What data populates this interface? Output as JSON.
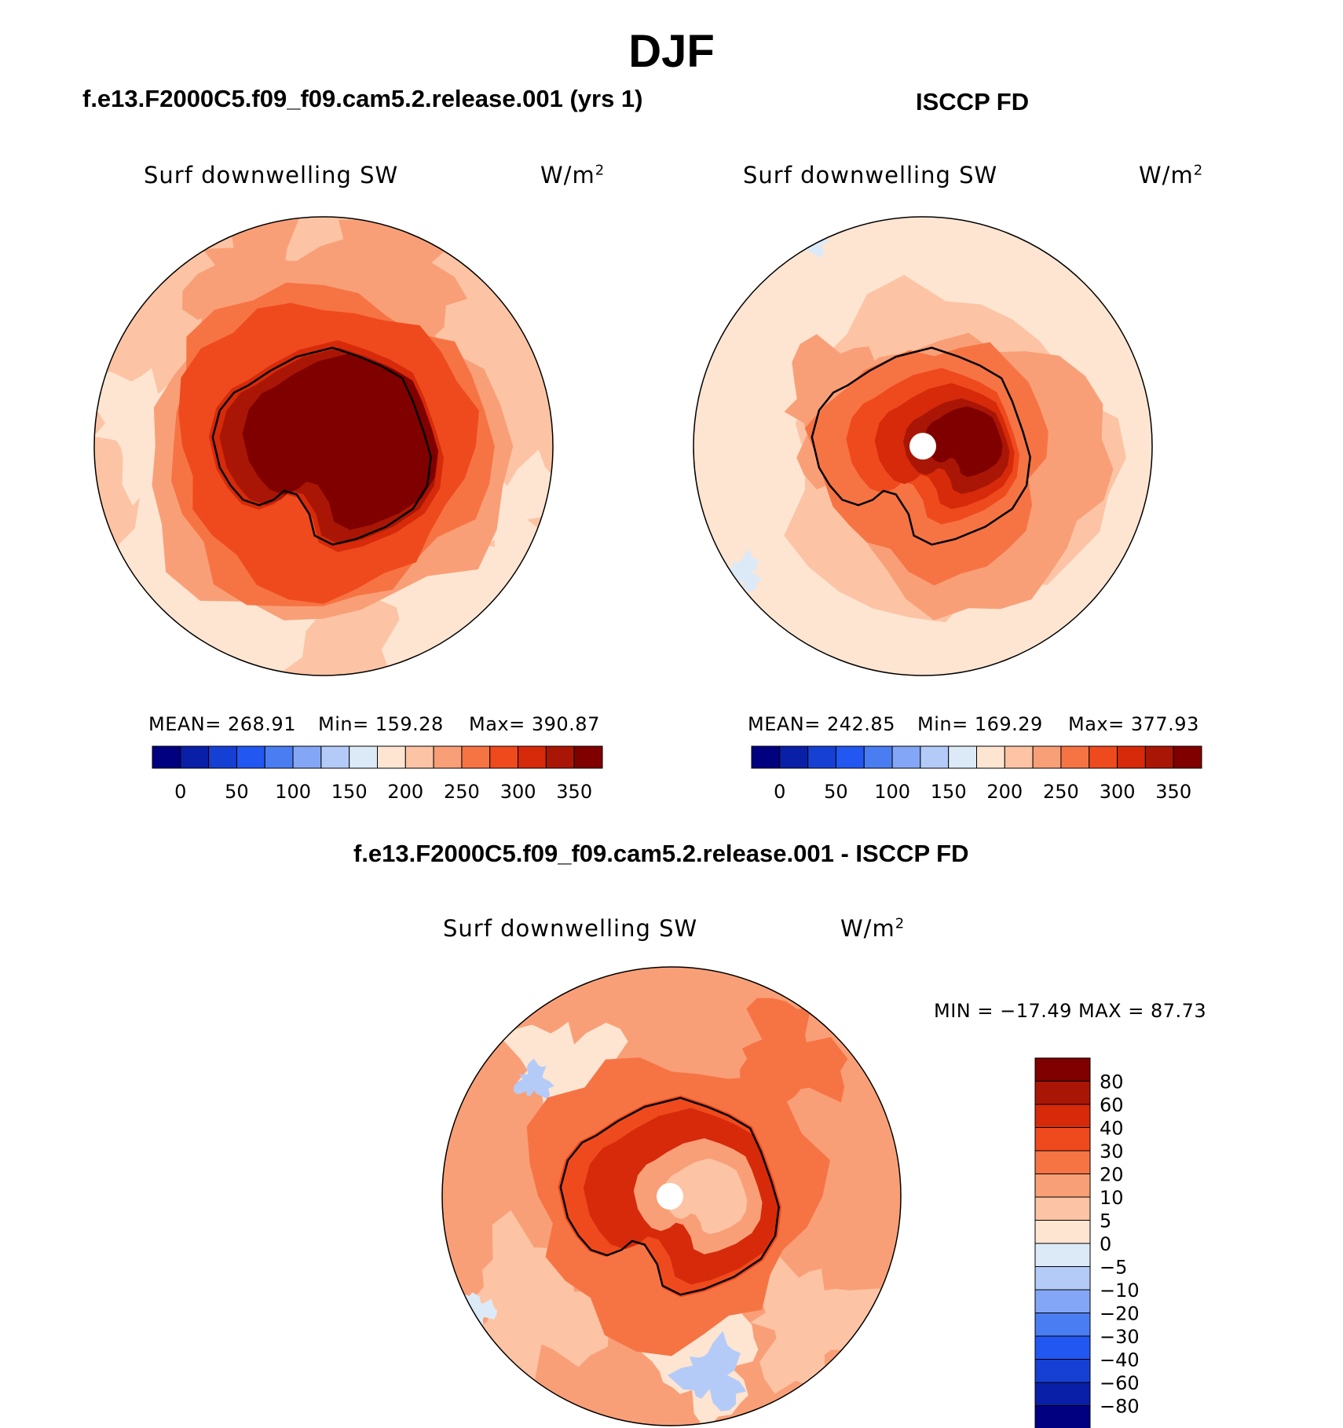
{
  "figure": {
    "season": "DJF",
    "model_title": "f.e13.F2000C5.f09_f09.cam5.2.release.001 (yrs 1)",
    "obs_title": "ISCCP FD",
    "diff_title": "f.e13.F2000C5.f09_f09.cam5.2.release.001 - ISCCP FD"
  },
  "palette": {
    "colors_16": [
      "#000080",
      "#0a1fa8",
      "#1640d4",
      "#2257f2",
      "#4a7df2",
      "#84a6f6",
      "#b4cbf8",
      "#dceaf8",
      "#fde5d2",
      "#fcc4a4",
      "#f99f77",
      "#f67444",
      "#ef4a1d",
      "#d62a0a",
      "#aa1605",
      "#800000"
    ],
    "continent": "#800000",
    "coast": "#000000",
    "pole_hole": "#ffffff"
  },
  "chart_data": [
    {
      "type": "heatmap",
      "projection": "south-polar-stereographic",
      "panel": "model",
      "variable": "Surf downwelling SW",
      "units_base": "W/m",
      "units_exp": "2",
      "mean_label": "MEAN= 268.91",
      "min_label": "Min= 159.28",
      "max_label": "Max= 390.87",
      "mean": 268.91,
      "min": 159.28,
      "max": 390.87,
      "colorbar_levels": [
        0,
        25,
        50,
        75,
        100,
        125,
        150,
        175,
        200,
        225,
        250,
        275,
        300,
        325,
        350
      ],
      "colorbar_tick_labels": [
        "0",
        "50",
        "100",
        "150",
        "200",
        "250",
        "300",
        "350"
      ],
      "pole_missing": false
    },
    {
      "type": "heatmap",
      "projection": "south-polar-stereographic",
      "panel": "observations",
      "variable": "Surf downwelling SW",
      "units_base": "W/m",
      "units_exp": "2",
      "mean_label": "MEAN= 242.85",
      "min_label": "Min= 169.29",
      "max_label": "Max= 377.93",
      "mean": 242.85,
      "min": 169.29,
      "max": 377.93,
      "colorbar_levels": [
        0,
        25,
        50,
        75,
        100,
        125,
        150,
        175,
        200,
        225,
        250,
        275,
        300,
        325,
        350
      ],
      "colorbar_tick_labels": [
        "0",
        "50",
        "100",
        "150",
        "200",
        "250",
        "300",
        "350"
      ],
      "pole_missing": true
    },
    {
      "type": "heatmap",
      "projection": "south-polar-stereographic",
      "panel": "difference",
      "variable": "Surf downwelling SW",
      "units_base": "W/m",
      "units_exp": "2",
      "minmax_label": "MIN = −17.49 MAX =  87.73",
      "min": -17.49,
      "max": 87.73,
      "colorbar_levels": [
        80,
        60,
        40,
        30,
        20,
        10,
        5,
        0,
        -5,
        -10,
        -20,
        -30,
        -40,
        -60,
        -80
      ],
      "colorbar_tick_labels": [
        "80",
        "60",
        "40",
        "30",
        "20",
        "10",
        "5",
        "0",
        "−5",
        "−10",
        "−20",
        "−30",
        "−40",
        "−60",
        "−80"
      ],
      "pole_missing": true
    }
  ]
}
